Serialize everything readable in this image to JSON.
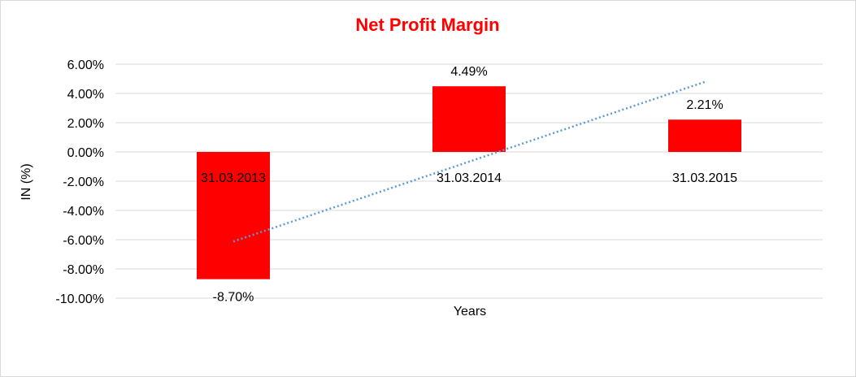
{
  "chart_data": {
    "type": "bar",
    "title": "Net Profit Margin",
    "xlabel": "Years",
    "ylabel": "IN (%)",
    "categories": [
      "31.03.2013",
      "31.03.2014",
      "31.03.2015"
    ],
    "values": [
      -8.7,
      4.49,
      2.21
    ],
    "data_labels": [
      "-8.70%",
      "4.49%",
      "2.21%"
    ],
    "ylim": [
      -10,
      6
    ],
    "y_ticks": [
      6,
      4,
      2,
      0,
      -2,
      -4,
      -6,
      -8,
      -10
    ],
    "y_tick_labels": [
      "6.00%",
      "4.00%",
      "2.00%",
      "0.00%",
      "-2.00%",
      "-4.00%",
      "-6.00%",
      "-8.00%",
      "-10.00%"
    ],
    "trendline": {
      "type": "linear",
      "style": "dotted"
    },
    "grid": true,
    "legend": "none",
    "colors": {
      "bar": "#ff0000",
      "title": "#ff0000",
      "trendline": "#5b9bd5",
      "grid": "#d9d9d9"
    }
  }
}
